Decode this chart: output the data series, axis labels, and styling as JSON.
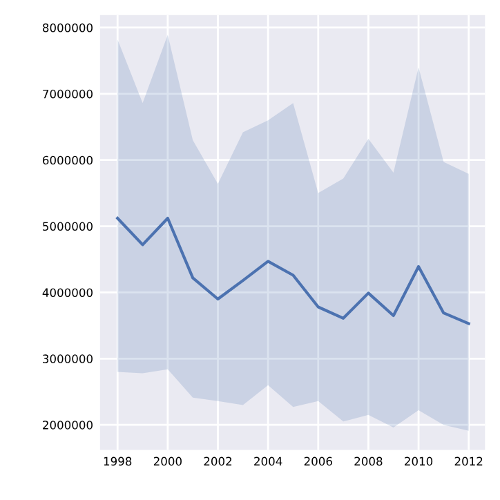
{
  "chart_data": {
    "type": "line",
    "x": [
      1998,
      1999,
      2000,
      2001,
      2002,
      2003,
      2004,
      2005,
      2006,
      2007,
      2008,
      2009,
      2010,
      2011,
      2012
    ],
    "series": [
      {
        "color": "#4c72b0",
        "values": [
          5120000,
          4720000,
          5120000,
          4220000,
          3900000,
          4180000,
          4470000,
          4260000,
          3780000,
          3610000,
          3990000,
          3650000,
          4390000,
          3690000,
          3530000
        ],
        "lower": [
          2800000,
          2780000,
          2840000,
          2410000,
          2360000,
          2300000,
          2600000,
          2270000,
          2360000,
          2050000,
          2150000,
          1960000,
          2220000,
          2000000,
          1910000
        ],
        "upper": [
          7820000,
          6860000,
          7890000,
          6300000,
          5640000,
          6420000,
          6600000,
          6860000,
          5500000,
          5720000,
          6320000,
          5810000,
          7400000,
          5970000,
          5790000
        ]
      }
    ],
    "xlim": [
      1997.3,
      2012.65
    ],
    "ylim": [
      1620000,
      8190000
    ],
    "xticks": [
      1998,
      2000,
      2002,
      2004,
      2006,
      2008,
      2010,
      2012
    ],
    "yticks": [
      2000000,
      3000000,
      4000000,
      5000000,
      6000000,
      7000000,
      8000000
    ],
    "grid": true
  }
}
